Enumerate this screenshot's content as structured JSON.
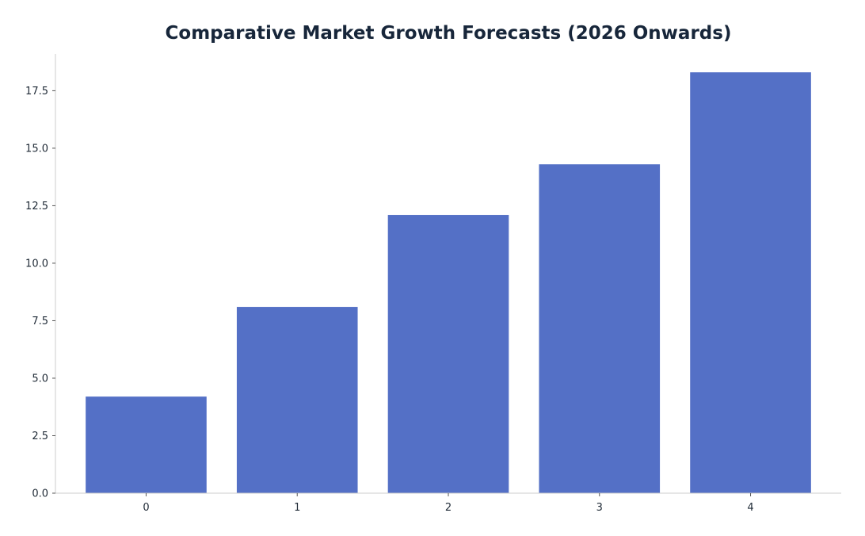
{
  "chart_data": {
    "type": "bar",
    "title": "Comparative Market Growth Forecasts (2026 Onwards)",
    "xlabel": "",
    "ylabel": "",
    "categories": [
      "0",
      "1",
      "2",
      "3",
      "4"
    ],
    "values": [
      4.2,
      8.1,
      12.1,
      14.3,
      18.3
    ],
    "ylim": [
      0,
      19.1
    ],
    "yticks": [
      "0.0",
      "2.5",
      "5.0",
      "7.5",
      "10.0",
      "12.5",
      "15.0",
      "17.5"
    ],
    "grid": false,
    "bar_color": "#5470c6",
    "axis_color": "#cccccc",
    "title_color": "#17263a"
  }
}
